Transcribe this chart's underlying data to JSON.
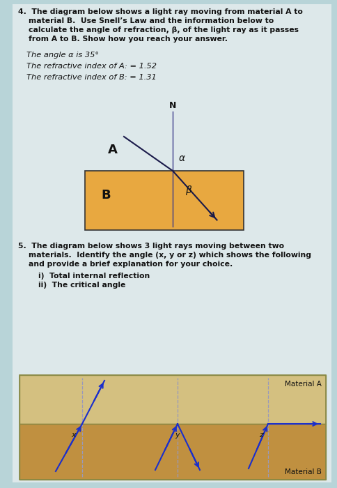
{
  "bg_color": "#b8d4d8",
  "page_bg": "#dde8ea",
  "q4_text_lines": [
    "4.  The diagram below shows a light ray moving from material A to",
    "    material B.  Use Snell’s Law and the information below to",
    "    calculate the angle of refraction, β, of the light ray as it passes",
    "    from A to B. Show how you reach your answer."
  ],
  "info_lines": [
    "The angle α is 35°",
    "The refractive index of A: = 1.52",
    "The refractive index of B: = 1.31"
  ],
  "q5_text_lines": [
    "5.  The diagram below shows 3 light rays moving between two",
    "    materials.  Identify the angle (x, y or z) which shows the following",
    "    and provide a brief explanation for your choice."
  ],
  "q5_sub": [
    "i)  Total internal reflection",
    "ii)  The critical angle"
  ],
  "diag1_box_color": "#e8a840",
  "normal_color": "#3a3a8a",
  "ray_color": "#1a1a4a",
  "blue_ray_color": "#1a2ecc",
  "diag2_upper_color": "#d4c080",
  "diag2_lower_color": "#c09040"
}
